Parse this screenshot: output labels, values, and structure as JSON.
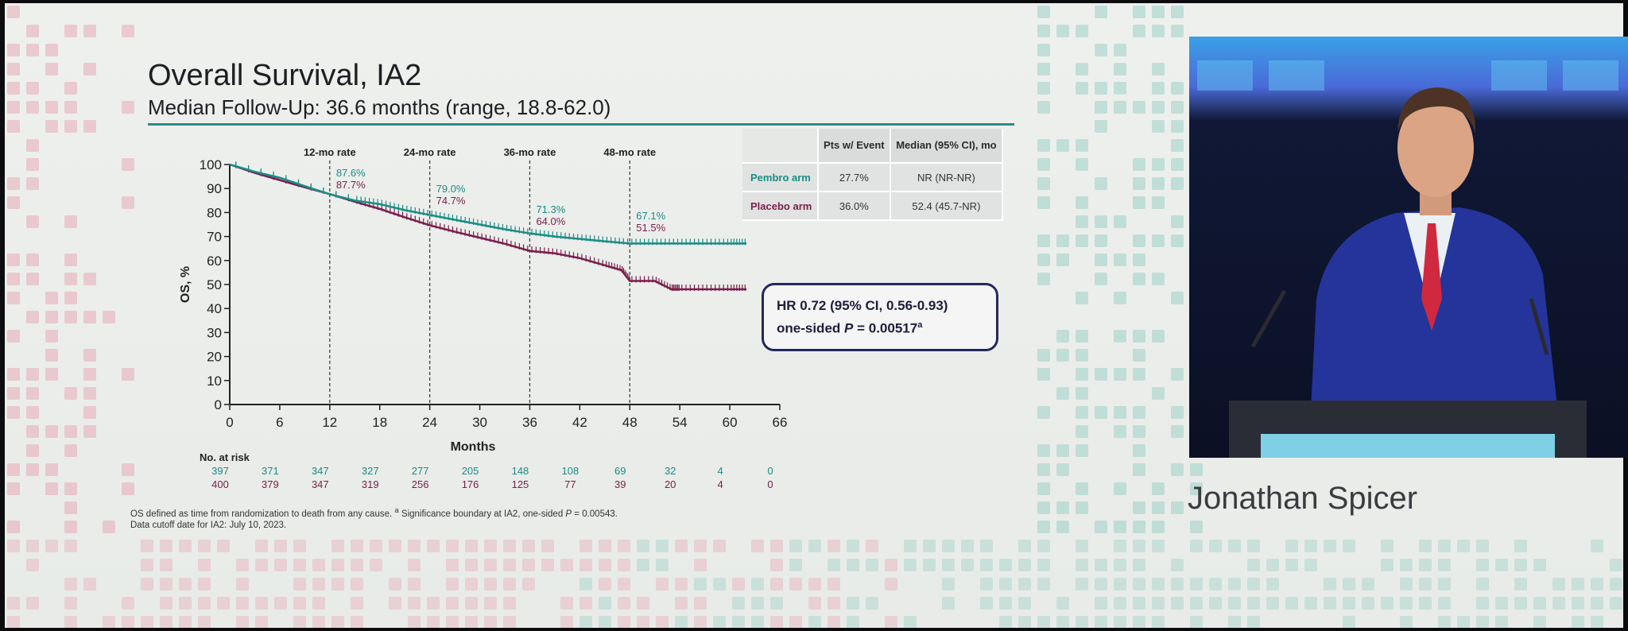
{
  "slide": {
    "title": "Overall Survival, IA2",
    "subtitle": "Median Follow-Up: 36.6 months (range, 18.8-62.0)"
  },
  "colors": {
    "pembro": "#1a8c86",
    "placebo": "#7a1d4a",
    "accent_rule": "#2d8a88",
    "hr_box_border": "#26265e",
    "deco_red": "#e8b5bd",
    "deco_green": "#a9d6cc"
  },
  "chart_data": {
    "type": "line",
    "xlabel": "Months",
    "ylabel": "OS, %",
    "xlim": [
      0,
      66
    ],
    "ylim": [
      0,
      100
    ],
    "x_ticks": [
      "0",
      "6",
      "12",
      "18",
      "24",
      "30",
      "36",
      "42",
      "48",
      "54",
      "60",
      "66"
    ],
    "y_ticks": [
      "0",
      "10",
      "20",
      "30",
      "40",
      "50",
      "60",
      "70",
      "80",
      "90",
      "100"
    ],
    "landmarks": [
      {
        "label": "12-mo rate",
        "x": 12,
        "pembro": "87.6%",
        "placebo": "87.7%"
      },
      {
        "label": "24-mo rate",
        "x": 24,
        "pembro": "79.0%",
        "placebo": "74.7%"
      },
      {
        "label": "36-mo rate",
        "x": 36,
        "pembro": "71.3%",
        "placebo": "64.0%"
      },
      {
        "label": "48-mo rate",
        "x": 48,
        "pembro": "67.1%",
        "placebo": "51.5%"
      }
    ],
    "series": [
      {
        "name": "Pembro arm",
        "color": "#1a8c86",
        "x": [
          0,
          3,
          6,
          9,
          12,
          15,
          18,
          21,
          24,
          27,
          30,
          33,
          36,
          39,
          42,
          45,
          48,
          51,
          54,
          57,
          60,
          62
        ],
        "y": [
          100,
          97,
          94.5,
          91,
          87.6,
          85,
          83.5,
          81,
          79,
          77,
          75,
          73,
          71.3,
          70,
          69,
          68,
          67.1,
          67.1,
          67.1,
          67.1,
          67.1,
          67.1
        ]
      },
      {
        "name": "Placebo arm",
        "color": "#7a1d4a",
        "x": [
          0,
          3,
          6,
          9,
          12,
          15,
          18,
          21,
          24,
          27,
          30,
          33,
          36,
          39,
          42,
          45,
          47,
          48,
          51,
          53,
          54,
          57,
          60,
          62
        ],
        "y": [
          100,
          96.5,
          93.5,
          90.5,
          87.7,
          84.5,
          81.5,
          78,
          74.7,
          72,
          69.5,
          67,
          64,
          63,
          61,
          58,
          56,
          51.5,
          51.5,
          48,
          48,
          48,
          48,
          48
        ]
      }
    ],
    "at_risk": {
      "heading": "No. at risk",
      "pembro": [
        "397",
        "371",
        "347",
        "327",
        "277",
        "205",
        "148",
        "108",
        "69",
        "32",
        "4",
        "0"
      ],
      "placebo": [
        "400",
        "379",
        "347",
        "319",
        "256",
        "176",
        "125",
        "77",
        "39",
        "20",
        "4",
        "0"
      ]
    }
  },
  "table": {
    "headers": [
      "",
      "Pts w/ Event",
      "Median (95% CI), mo"
    ],
    "rows": [
      {
        "arm": "Pembro arm",
        "events": "27.7%",
        "median": "NR (NR-NR)"
      },
      {
        "arm": "Placebo arm",
        "events": "36.0%",
        "median": "52.4 (45.7-NR)"
      }
    ]
  },
  "hr_box": {
    "line1": "HR 0.72 (95% CI, 0.56-0.93)",
    "line2_prefix": "one-sided ",
    "line2_p": "P",
    "line2_value": " = 0.00517",
    "line2_sup": "a"
  },
  "footnotes": {
    "line1_a": "OS defined as time from randomization to death from any cause. ",
    "line1_sup": "a",
    "line1_b": " Significance boundary at IA2, one-sided ",
    "line1_p": "P",
    "line1_c": " = 0.00543.",
    "line2": "Data cutoff date for IA2: July 10, 2023."
  },
  "speaker": {
    "name": "Jonathan Spicer"
  }
}
